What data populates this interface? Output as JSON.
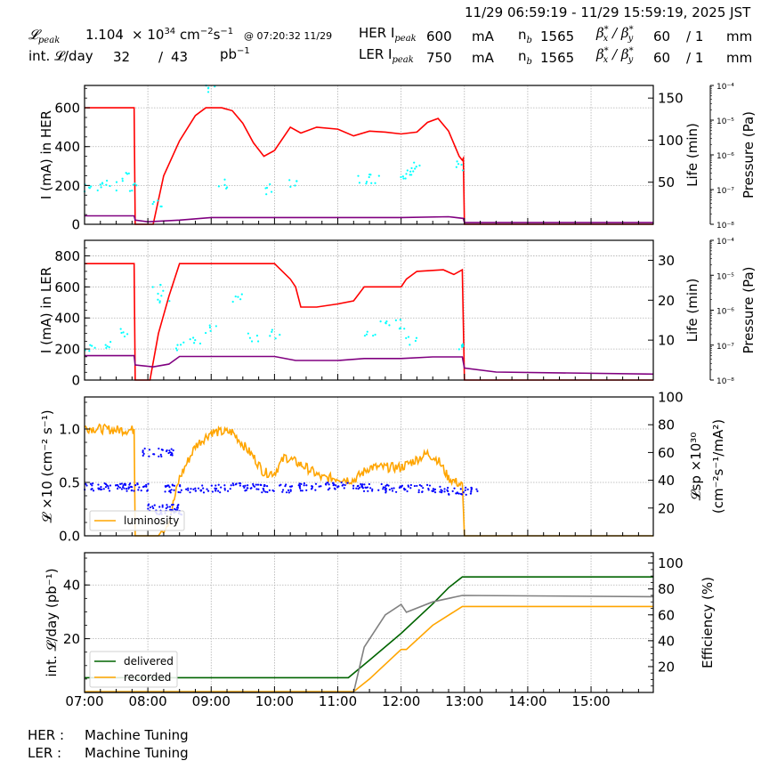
{
  "header": {
    "time_range": "11/29 06:59:19 - 11/29 15:59:19, 2025 JST",
    "lpeak_label": "𝓛",
    "lpeak_sub": "peak",
    "lpeak_value": "1.104",
    "lpeak_unit_prefix": "× 10",
    "lpeak_unit_exp": "34",
    "lpeak_unit": " cm",
    "lpeak_unit_exp2": "−2",
    "lpeak_unit_s": "s",
    "lpeak_unit_exp3": "−1",
    "lpeak_time": "@ 07:20:32 11/29",
    "intl_label": "int. 𝓛/day",
    "intl_recorded": "32",
    "intl_sep": "/",
    "intl_delivered": "43",
    "intl_unit": "pb",
    "intl_unit_exp": "−1",
    "her": {
      "label": "HER I",
      "sub": "peak",
      "current": "600",
      "unit": "mA",
      "nb_label": "n",
      "nb_sub": "b",
      "nb": "1565",
      "beta_label": "β*x / β*y",
      "beta_x": "60",
      "beta_y": "/ 1",
      "beta_unit": "mm"
    },
    "ler": {
      "label": "LER I",
      "sub": "peak",
      "current": "750",
      "unit": "mA",
      "nb_label": "n",
      "nb_sub": "b",
      "nb": "1565",
      "beta_label": "β*x / β*y",
      "beta_x": "60",
      "beta_y": "/ 1",
      "beta_unit": "mm"
    }
  },
  "footer": {
    "her_label": "HER :",
    "her_status": "Machine Tuning",
    "ler_label": "LER :",
    "ler_status": "Machine Tuning"
  },
  "colors": {
    "current": "#ff0000",
    "lifetime": "#800080",
    "pressure": "#00ffff",
    "luminosity": "#ffa500",
    "specific_lumi": "#0000ff",
    "delivered": "#006400",
    "recorded": "#ffa500",
    "efficiency": "#808080"
  },
  "chart_data": [
    {
      "type": "line",
      "title": "HER",
      "xlabel": "",
      "ylabel": "I (mA) in HER",
      "ylabel_right": "Life (min)",
      "ylabel_right2": "Pressure (Pa)",
      "x_ticks": [
        "07:00",
        "08:00",
        "09:00",
        "10:00",
        "11:00",
        "12:00",
        "13:00",
        "14:00",
        "15:00"
      ],
      "ylim": [
        0,
        715
      ],
      "yticks": [
        0,
        200,
        400,
        600
      ],
      "ylim_right": [
        0,
        165
      ],
      "yticks_right": [
        50,
        100,
        150
      ],
      "pressure_ticks": [
        "10^-8",
        "10^-7",
        "10^-6",
        "10^-5",
        "10^-4"
      ],
      "grid": true,
      "series": [
        {
          "name": "HER current (mA)",
          "axis": "left",
          "color": "#ff0000",
          "x": [
            "07:00",
            "07:47",
            "07:48",
            "08:05",
            "08:15",
            "08:30",
            "08:45",
            "08:55",
            "09:10",
            "09:20",
            "09:30",
            "09:40",
            "09:50",
            "10:00",
            "10:15",
            "10:25",
            "10:40",
            "11:00",
            "11:15",
            "11:30",
            "11:45",
            "12:00",
            "12:15",
            "12:25",
            "12:35",
            "12:45",
            "12:55",
            "12:58",
            "12:59",
            "13:00",
            "15:59"
          ],
          "y": [
            600,
            600,
            0,
            0,
            250,
            430,
            560,
            600,
            600,
            585,
            520,
            420,
            350,
            380,
            500,
            470,
            500,
            490,
            455,
            480,
            475,
            465,
            475,
            525,
            545,
            480,
            350,
            330,
            340,
            0,
            0
          ]
        },
        {
          "name": "HER lifetime (min)",
          "axis": "right",
          "color": "#800080",
          "x": [
            "07:00",
            "07:47",
            "07:48",
            "08:00",
            "08:30",
            "09:00",
            "10:00",
            "11:00",
            "12:00",
            "12:45",
            "12:59",
            "13:00",
            "15:59"
          ],
          "y": [
            10,
            10,
            5,
            3,
            5,
            8,
            8,
            8,
            8,
            9,
            7,
            2,
            2
          ]
        },
        {
          "name": "HER pressure (scatter)",
          "axis": "right2",
          "color": "#00ffff",
          "x": [
            "07:05",
            "07:15",
            "07:25",
            "07:40",
            "07:48",
            "08:10",
            "08:58",
            "09:10",
            "09:55",
            "10:20",
            "11:25",
            "11:35",
            "12:05",
            "12:10",
            "12:15",
            "12:58"
          ],
          "y": [
            190,
            190,
            200,
            250,
            195,
            100,
            700,
            210,
            180,
            220,
            230,
            230,
            235,
            250,
            310,
            300
          ]
        }
      ]
    },
    {
      "type": "line",
      "title": "LER",
      "xlabel": "",
      "ylabel": "I (mA) in LER",
      "ylabel_right": "Life (min)",
      "ylabel_right2": "Pressure (Pa)",
      "ylim": [
        0,
        900
      ],
      "yticks": [
        0,
        200,
        400,
        600,
        800
      ],
      "ylim_right": [
        0,
        35
      ],
      "yticks_right": [
        10,
        20,
        30
      ],
      "pressure_ticks": [
        "10^-8",
        "10^-7",
        "10^-6",
        "10^-5",
        "10^-4"
      ],
      "grid": true,
      "series": [
        {
          "name": "LER current (mA)",
          "axis": "left",
          "color": "#ff0000",
          "x": [
            "07:00",
            "07:47",
            "07:48",
            "08:02",
            "08:10",
            "08:20",
            "08:30",
            "08:32",
            "10:00",
            "10:15",
            "10:20",
            "10:25",
            "10:40",
            "11:00",
            "11:15",
            "11:25",
            "11:35",
            "12:00",
            "12:05",
            "12:15",
            "12:40",
            "12:50",
            "12:58",
            "13:00",
            "15:59"
          ],
          "y": [
            750,
            750,
            0,
            0,
            300,
            540,
            750,
            750,
            750,
            650,
            600,
            470,
            470,
            490,
            510,
            600,
            600,
            600,
            650,
            700,
            710,
            680,
            710,
            0,
            0
          ]
        },
        {
          "name": "LER lifetime (min)",
          "axis": "right",
          "color": "#800080",
          "x": [
            "07:00",
            "07:47",
            "07:48",
            "08:05",
            "08:20",
            "08:30",
            "10:00",
            "10:20",
            "11:00",
            "11:25",
            "12:00",
            "12:30",
            "12:58",
            "13:00",
            "13:30",
            "15:59"
          ],
          "y": [
            6.1,
            6.1,
            3.8,
            3.3,
            4.0,
            5.9,
            5.9,
            4.9,
            4.9,
            5.4,
            5.4,
            5.8,
            5.8,
            3.0,
            2.0,
            1.5
          ]
        },
        {
          "name": "LER pressure (scatter)",
          "axis": "right2",
          "color": "#00ffff",
          "x": [
            "07:05",
            "07:20",
            "07:35",
            "08:10",
            "08:15",
            "08:30",
            "08:45",
            "09:00",
            "09:25",
            "09:40",
            "10:00",
            "11:30",
            "11:45",
            "12:00",
            "12:10",
            "12:58"
          ],
          "y": [
            220,
            240,
            300,
            590,
            510,
            220,
            240,
            320,
            520,
            280,
            300,
            300,
            370,
            360,
            260,
            200
          ]
        }
      ]
    },
    {
      "type": "line",
      "title": "Luminosity",
      "xlabel": "",
      "ylabel": "𝓛 ×10^34 (cm^-2 s^-1)",
      "ylabel_right": "𝓛sp ×10^30 (cm^-2 s^-1/mA^2)",
      "ylim": [
        0,
        1.3
      ],
      "yticks": [
        0.0,
        0.5,
        1.0
      ],
      "ylim_right": [
        0,
        100
      ],
      "yticks_right": [
        20,
        40,
        60,
        80,
        100
      ],
      "legend": [
        "luminosity"
      ],
      "legend_position": "lower left",
      "grid": true,
      "series": [
        {
          "name": "luminosity",
          "axis": "left",
          "color": "#ffa500",
          "x": [
            "07:00",
            "07:30",
            "07:47",
            "07:48",
            "08:10",
            "08:20",
            "08:30",
            "08:45",
            "09:00",
            "09:20",
            "09:40",
            "09:50",
            "10:00",
            "10:10",
            "10:30",
            "10:45",
            "11:00",
            "11:15",
            "11:30",
            "11:45",
            "12:00",
            "12:10",
            "12:25",
            "12:35",
            "12:45",
            "12:58",
            "13:00",
            "15:59"
          ],
          "y": [
            1.02,
            1.0,
            1.0,
            0.0,
            0.0,
            0.15,
            0.55,
            0.85,
            0.98,
            0.98,
            0.75,
            0.6,
            0.6,
            0.75,
            0.65,
            0.55,
            0.55,
            0.53,
            0.65,
            0.65,
            0.65,
            0.7,
            0.78,
            0.72,
            0.55,
            0.48,
            0.0,
            0.0
          ]
        },
        {
          "name": "specific luminosity (scatter)",
          "axis": "right",
          "color": "#0000ff",
          "x": [
            "07:00",
            "07:30",
            "07:47",
            "08:10",
            "08:15",
            "08:20",
            "08:30",
            "09:00",
            "09:30",
            "10:00",
            "10:30",
            "11:00",
            "11:30",
            "12:00",
            "12:30",
            "12:58"
          ],
          "y": [
            35,
            35,
            35,
            60,
            20,
            18,
            34,
            34,
            35,
            34,
            35,
            36,
            35,
            34,
            34,
            32
          ]
        }
      ]
    },
    {
      "type": "line",
      "title": "Integrated luminosity",
      "xlabel": "",
      "ylabel": "int. 𝓛/day (pb^-1)",
      "ylabel_right": "Efficiency (%)",
      "ylim": [
        0,
        52
      ],
      "yticks": [
        20,
        40
      ],
      "ylim_right": [
        0,
        108
      ],
      "yticks_right": [
        20,
        40,
        60,
        80,
        100
      ],
      "legend": [
        "delivered",
        "recorded"
      ],
      "legend_position": "lower left",
      "grid": true,
      "series": [
        {
          "name": "delivered",
          "axis": "left",
          "color": "#006400",
          "x": [
            "07:00",
            "11:10",
            "11:30",
            "12:00",
            "12:30",
            "12:45",
            "12:58",
            "15:59"
          ],
          "y": [
            5.5,
            5.5,
            12,
            22,
            33,
            39,
            43,
            43
          ]
        },
        {
          "name": "recorded",
          "axis": "left",
          "color": "#ffa500",
          "x": [
            "07:00",
            "11:15",
            "11:30",
            "12:00",
            "12:05",
            "12:30",
            "12:58",
            "15:59"
          ],
          "y": [
            0.3,
            0.3,
            5,
            16,
            16,
            25,
            32,
            32
          ]
        },
        {
          "name": "efficiency",
          "axis": "right",
          "color": "#808080",
          "x": [
            "07:00",
            "11:15",
            "11:25",
            "11:45",
            "12:00",
            "12:05",
            "12:30",
            "12:58",
            "15:59"
          ],
          "y": [
            0,
            0,
            35,
            60,
            68,
            62,
            70,
            75,
            74
          ]
        }
      ]
    }
  ]
}
